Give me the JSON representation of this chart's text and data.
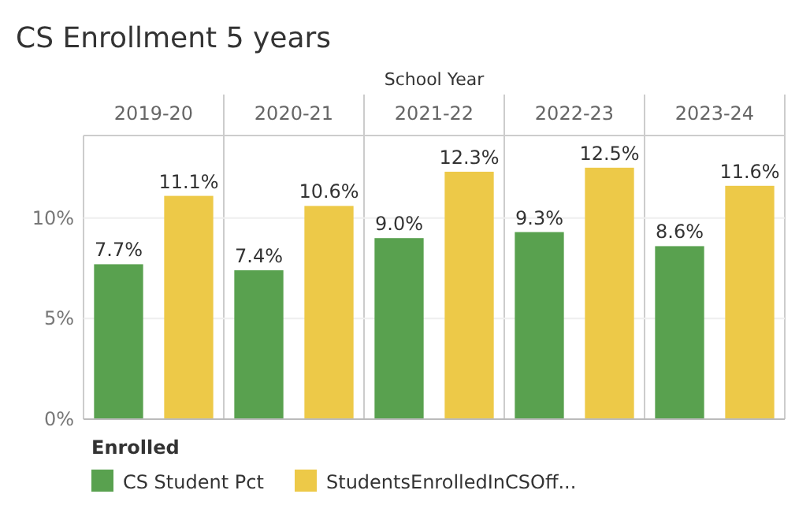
{
  "chart_data": {
    "type": "bar",
    "title": "CS Enrollment 5 years",
    "xlabel": "School Year",
    "legend_title": "Enrolled",
    "categories": [
      "2019-20",
      "2020-21",
      "2021-22",
      "2022-23",
      "2023-24"
    ],
    "series": [
      {
        "name": "CS Student Pct",
        "color": "#59a14f",
        "values": [
          7.7,
          7.4,
          9.0,
          9.3,
          8.6
        ],
        "value_labels": [
          "7.7%",
          "7.4%",
          "9.0%",
          "9.3%",
          "8.6%"
        ]
      },
      {
        "name": "StudentsEnrolledInCSOff...",
        "color": "#edc948",
        "values": [
          11.1,
          10.6,
          12.3,
          12.5,
          11.6
        ],
        "value_labels": [
          "11.1%",
          "10.6%",
          "12.3%",
          "12.5%",
          "11.6%"
        ]
      }
    ],
    "ylim": [
      0,
      14.1
    ],
    "yticks": [
      {
        "value": 0,
        "label": "0%"
      },
      {
        "value": 5,
        "label": "5%"
      },
      {
        "value": 10,
        "label": "10%"
      }
    ],
    "grid": "y",
    "legend": "bottom"
  }
}
